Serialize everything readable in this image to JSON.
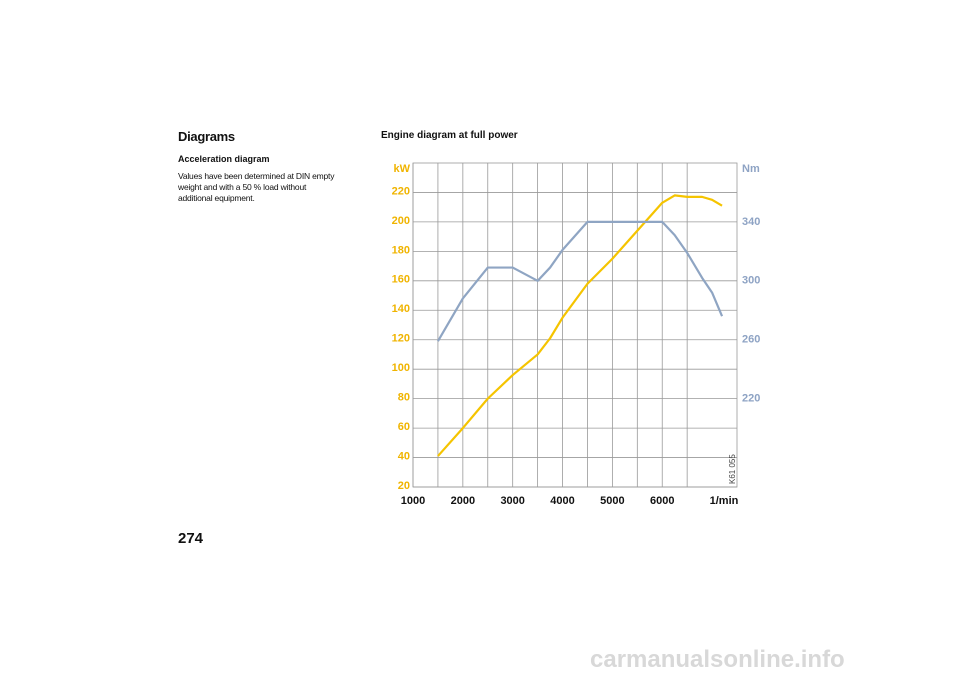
{
  "header": {
    "title": "Diagrams"
  },
  "section": {
    "title": "Acceleration diagram",
    "lines": [
      "Values have been determined at DIN empty",
      "weight and with a 50 % load without",
      "additional equipment."
    ]
  },
  "page_number": "274",
  "watermark": "carmanualsonline.info",
  "chart_data": {
    "type": "line",
    "title": "Engine diagram at full power",
    "x_label": "1/min",
    "y_label": "kW",
    "y2_label": "Nm",
    "code": "K61 055",
    "x": [
      1500,
      2000,
      2500,
      3000,
      3500,
      3750,
      4000,
      4500,
      5000,
      5500,
      6000,
      6250,
      6500,
      6800,
      7000,
      7200
    ],
    "series": [
      {
        "color": "#f5c400",
        "values": [
          41,
          60,
          80,
          96,
          110,
          121,
          135,
          158,
          175,
          194,
          213,
          218,
          217,
          217,
          215,
          211
        ]
      },
      {
        "color": "#8fa5c3",
        "axis": "y2",
        "values": [
          259,
          288,
          309,
          309,
          300,
          309,
          321,
          340,
          340,
          340,
          340,
          331,
          319,
          302,
          292,
          276
        ]
      }
    ],
    "xlim": [
      1000,
      7500
    ],
    "xticks": [
      1000,
      2000,
      3000,
      4000,
      5000,
      6000
    ],
    "ylim": [
      20,
      240
    ],
    "yticks": [
      20,
      40,
      60,
      80,
      100,
      120,
      140,
      160,
      180,
      200,
      220
    ],
    "y2lim": [
      160,
      380
    ],
    "y2ticks": [
      220,
      260,
      300,
      340
    ],
    "grid": true,
    "y_color": "#f0b400",
    "y2_color": "#8ea3c4"
  }
}
